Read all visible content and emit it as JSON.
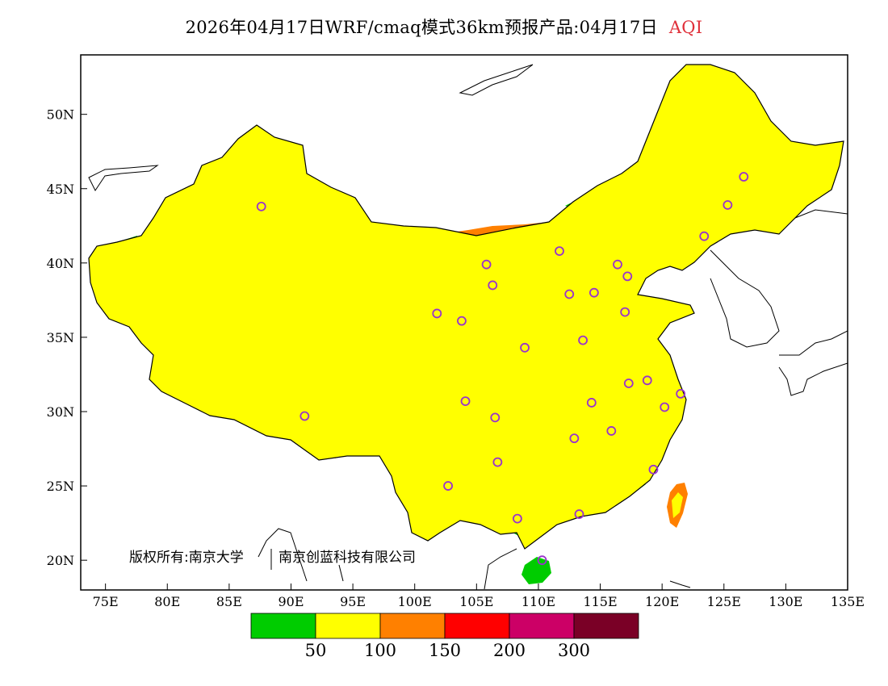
{
  "title": {
    "main": "2026年04月17日WRF/cmaq模式36km预报产品:04月17日",
    "variable": "AQI"
  },
  "colors": {
    "good": "#00cc00",
    "moderate": "#ffff00",
    "usg": "#ff8000",
    "unhealthy": "#ff0000",
    "very_unhealthy": "#cc0066",
    "hazardous": "#7a0026",
    "ocean": "#ffffff",
    "station": "#9933cc"
  },
  "axes": {
    "lon_ticks": [
      "75E",
      "80E",
      "85E",
      "90E",
      "95E",
      "100E",
      "105E",
      "110E",
      "115E",
      "120E",
      "125E",
      "130E",
      "135E"
    ],
    "lat_ticks": [
      "20N",
      "25N",
      "30N",
      "35N",
      "40N",
      "45N",
      "50N"
    ],
    "lon_range": [
      73,
      135
    ],
    "lat_range": [
      18,
      54
    ]
  },
  "legend": {
    "labels": [
      "50",
      "100",
      "150",
      "200",
      "300"
    ]
  },
  "copyright": {
    "left": "版权所有:南京大学",
    "right": "南京创蓝科技有限公司"
  },
  "stations": [
    {
      "lon": 87.6,
      "lat": 43.8
    },
    {
      "lon": 91.1,
      "lat": 29.7
    },
    {
      "lon": 101.8,
      "lat": 36.6
    },
    {
      "lon": 103.8,
      "lat": 36.1
    },
    {
      "lon": 106.3,
      "lat": 38.5
    },
    {
      "lon": 111.7,
      "lat": 40.8
    },
    {
      "lon": 116.4,
      "lat": 39.9
    },
    {
      "lon": 117.2,
      "lat": 39.1
    },
    {
      "lon": 114.5,
      "lat": 38.0
    },
    {
      "lon": 112.5,
      "lat": 37.9
    },
    {
      "lon": 117.0,
      "lat": 36.7
    },
    {
      "lon": 113.6,
      "lat": 34.8
    },
    {
      "lon": 108.9,
      "lat": 34.3
    },
    {
      "lon": 104.1,
      "lat": 30.7
    },
    {
      "lon": 106.5,
      "lat": 29.6
    },
    {
      "lon": 114.3,
      "lat": 30.6
    },
    {
      "lon": 117.3,
      "lat": 31.9
    },
    {
      "lon": 118.8,
      "lat": 32.1
    },
    {
      "lon": 121.5,
      "lat": 31.2
    },
    {
      "lon": 120.2,
      "lat": 30.3
    },
    {
      "lon": 112.9,
      "lat": 28.2
    },
    {
      "lon": 115.9,
      "lat": 28.7
    },
    {
      "lon": 119.3,
      "lat": 26.1
    },
    {
      "lon": 113.3,
      "lat": 23.1
    },
    {
      "lon": 108.3,
      "lat": 22.8
    },
    {
      "lon": 106.7,
      "lat": 26.6
    },
    {
      "lon": 102.7,
      "lat": 25.0
    },
    {
      "lon": 110.3,
      "lat": 20.0
    },
    {
      "lon": 123.4,
      "lat": 41.8
    },
    {
      "lon": 125.3,
      "lat": 43.9
    },
    {
      "lon": 126.6,
      "lat": 45.8
    },
    {
      "lon": 105.8,
      "lat": 39.9
    }
  ]
}
